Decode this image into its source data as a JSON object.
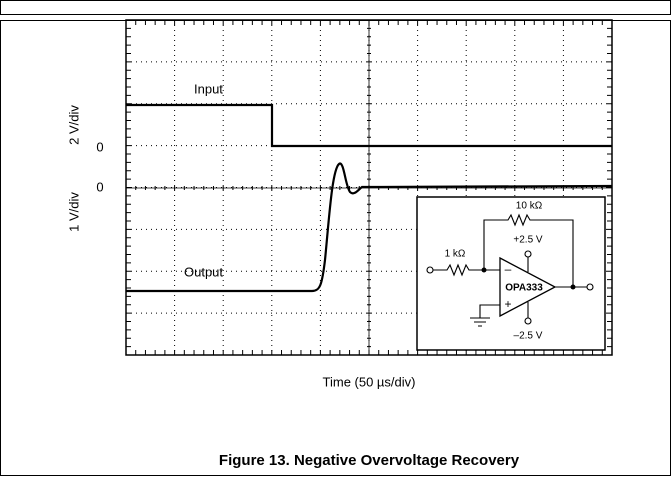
{
  "figure": {
    "trace_labels": {
      "input": "Input",
      "output": "Output"
    },
    "axis_labels": {
      "upper": "2 V/div",
      "lower": "1 V/div",
      "upper_zero": "0",
      "lower_zero": "0",
      "x": "Time (50 µs/div)"
    },
    "circuit": {
      "feedback_resistor": "10 kΩ",
      "input_resistor": "1 kΩ",
      "positive_supply": "+2.5 V",
      "negative_supply": "–2.5 V",
      "amplifier": "OPA333",
      "inverting": "–",
      "non_inverting": "+"
    },
    "caption": "Figure 13. Negative Overvoltage Recovery"
  }
}
